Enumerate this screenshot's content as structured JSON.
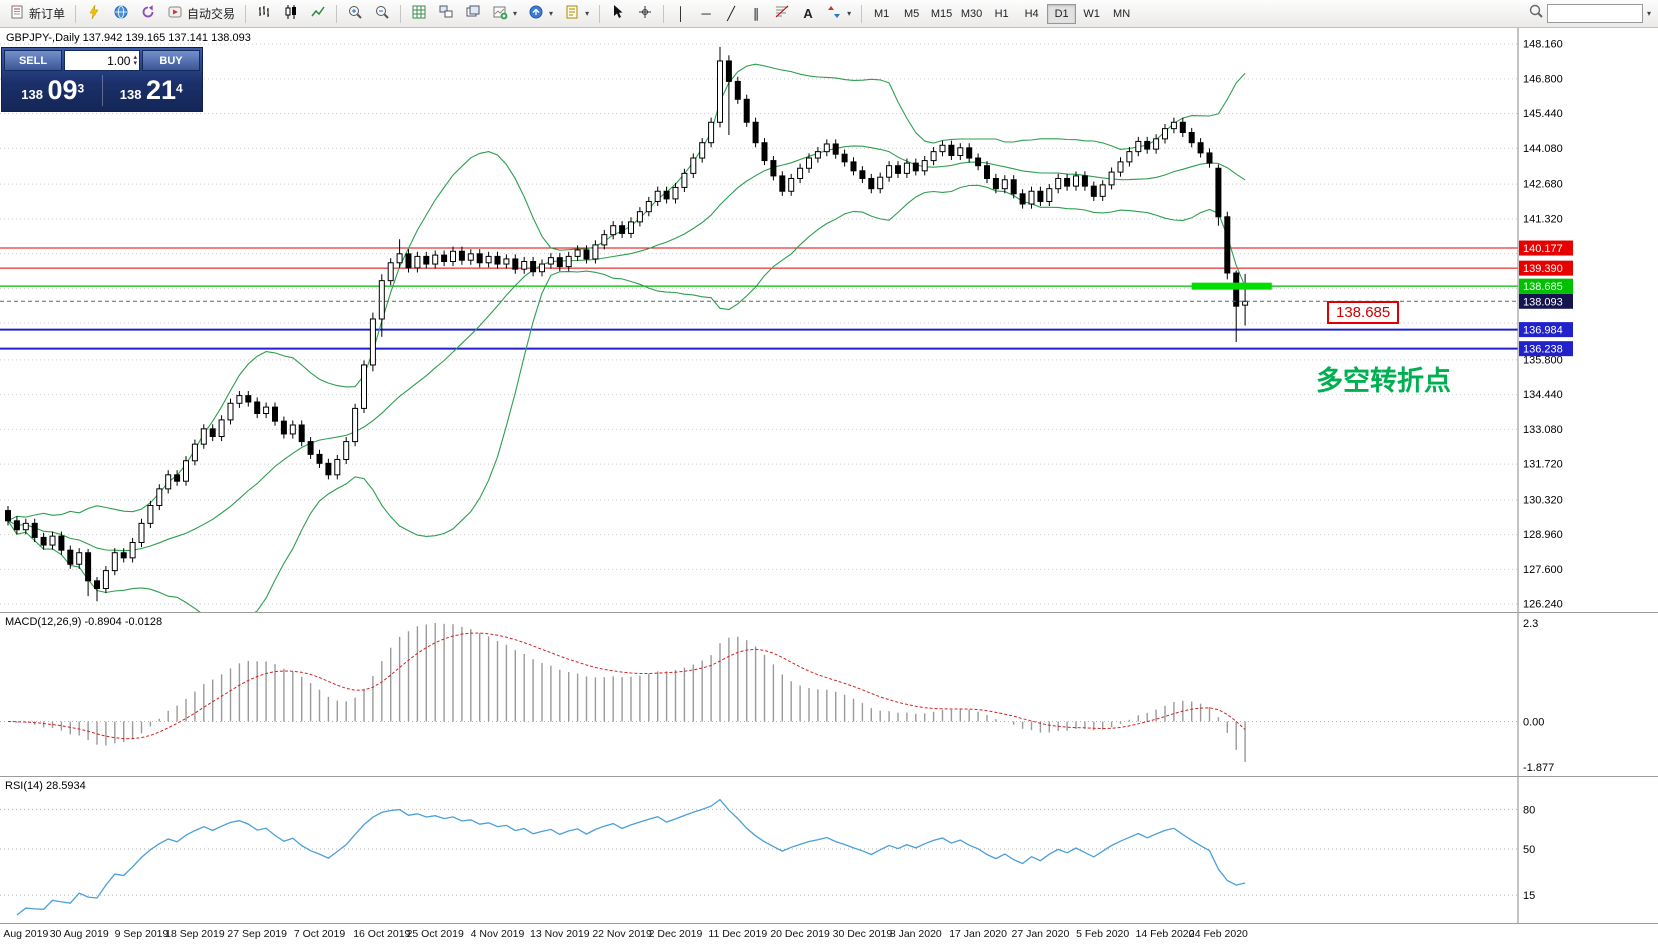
{
  "toolbar": {
    "new_order_label": "新订单",
    "autotrade_label": "自动交易",
    "timeframes": [
      "M1",
      "M5",
      "M15",
      "M30",
      "H1",
      "H4",
      "D1",
      "W1",
      "MN"
    ],
    "active_timeframe": "D1",
    "glyphs": {
      "vertical_line": "│",
      "horizontal_line": "─",
      "trendline": "╱",
      "channel": "∥",
      "text_tool": "A",
      "caret": "▾",
      "stepper_up": "▴",
      "stepper_down": "▾"
    }
  },
  "quote_panel": {
    "sell_label": "SELL",
    "buy_label": "BUY",
    "volume": "1.00",
    "sell_price": {
      "prefix": "138",
      "big": "09",
      "sup": "3"
    },
    "buy_price": {
      "prefix": "138",
      "big": "21",
      "sup": "4"
    }
  },
  "chart": {
    "title": "GBPJPY-,Daily 137.942 139.165 137.141 138.093"
  },
  "chart_data": {
    "type": "candlestick",
    "symbol": "GBPJPY-",
    "timeframe": "Daily",
    "ohlc": {
      "open": 137.942,
      "high": 139.165,
      "low": 137.141,
      "close": 138.093
    },
    "bands_color": "#2e9e4f",
    "price_axis": {
      "min": 125.93,
      "max": 148.79,
      "gridlines": [
        148.16,
        146.8,
        145.44,
        144.08,
        142.68,
        141.32,
        135.8,
        134.44,
        133.08,
        131.72,
        130.32,
        128.96,
        127.6,
        126.24
      ],
      "hidden_gridlines": [
        139.96,
        138.6,
        137.24
      ],
      "special_labels": [
        {
          "price": 140.177,
          "text": "140.177",
          "bg": "#e60000",
          "fg": "#ffffff"
        },
        {
          "price": 139.39,
          "text": "139.390",
          "bg": "#e60000",
          "fg": "#ffffff"
        },
        {
          "price": 138.685,
          "text": "138.685",
          "bg": "#00c000",
          "fg": "#ffffff"
        },
        {
          "price": 138.093,
          "text": "138.093",
          "bg": "#14144e",
          "fg": "#ffffff"
        },
        {
          "price": 136.984,
          "text": "136.984",
          "bg": "#2222cc",
          "fg": "#ffffff"
        },
        {
          "price": 136.238,
          "text": "136.238",
          "bg": "#2222cc",
          "fg": "#ffffff"
        }
      ]
    },
    "hlines": [
      {
        "price": 140.177,
        "color": "#e00000",
        "width": 1
      },
      {
        "price": 139.39,
        "color": "#e00000",
        "width": 1
      },
      {
        "price": 138.685,
        "color": "#00b800",
        "width": 1.2
      },
      {
        "price": 136.984,
        "color": "#2020cc",
        "width": 2
      },
      {
        "price": 136.238,
        "color": "#2020cc",
        "width": 2
      }
    ],
    "current_price": {
      "value": 138.093,
      "label": "138.093"
    },
    "highlight_segment": {
      "price": 138.685,
      "start_index": 133,
      "end_index": 142,
      "color": "#00dd00"
    },
    "annotations": {
      "price_flag": "138.685",
      "note": "多空转折点"
    },
    "candles": {
      "first_open": 129.9,
      "closes": [
        129.5,
        129.15,
        129.4,
        128.85,
        128.55,
        128.9,
        128.35,
        127.8,
        128.25,
        127.15,
        126.85,
        127.55,
        128.25,
        128.05,
        128.65,
        129.4,
        130.1,
        130.75,
        131.3,
        131.05,
        131.85,
        132.5,
        133.1,
        132.8,
        133.45,
        134.1,
        134.4,
        134.15,
        133.7,
        133.95,
        133.4,
        132.9,
        133.25,
        132.6,
        132.1,
        131.75,
        131.3,
        131.9,
        132.6,
        133.9,
        135.6,
        137.4,
        138.9,
        139.6,
        139.95,
        139.4,
        139.85,
        139.55,
        139.9,
        139.65,
        140.05,
        139.7,
        139.95,
        139.6,
        139.85,
        139.55,
        139.75,
        139.35,
        139.65,
        139.25,
        139.55,
        139.8,
        139.45,
        139.85,
        140.1,
        139.75,
        140.3,
        140.7,
        141.05,
        140.75,
        141.2,
        141.6,
        142.0,
        142.4,
        142.1,
        142.55,
        143.1,
        143.7,
        144.3,
        145.1,
        147.5,
        146.7,
        146.0,
        145.1,
        144.3,
        143.6,
        143.0,
        142.4,
        142.9,
        143.3,
        143.7,
        143.95,
        144.25,
        143.85,
        143.55,
        143.2,
        142.9,
        142.5,
        142.95,
        143.4,
        143.1,
        143.5,
        143.2,
        143.6,
        143.95,
        144.2,
        143.8,
        144.1,
        143.7,
        143.4,
        142.9,
        142.5,
        142.85,
        142.3,
        141.9,
        142.4,
        142.0,
        142.5,
        142.9,
        142.6,
        143.0,
        142.6,
        142.2,
        142.65,
        143.15,
        143.55,
        143.95,
        144.35,
        144.05,
        144.45,
        144.85,
        145.1,
        144.7,
        144.3,
        143.9,
        143.5,
        141.4,
        139.2,
        137.9,
        138.093
      ],
      "overrides": {
        "9": [
          128.25,
          128.4,
          126.55,
          127.15
        ],
        "10": [
          127.15,
          127.3,
          126.35,
          126.85
        ],
        "41": [
          135.6,
          137.65,
          135.35,
          137.4
        ],
        "42": [
          137.4,
          139.15,
          136.7,
          138.9
        ],
        "44": [
          139.6,
          140.52,
          139.4,
          139.95
        ],
        "80": [
          145.1,
          148.05,
          144.9,
          147.5
        ],
        "81": [
          147.5,
          147.72,
          144.6,
          146.7
        ],
        "136": [
          143.3,
          143.45,
          141.05,
          141.4
        ],
        "137": [
          141.4,
          141.6,
          138.95,
          139.2
        ],
        "138": [
          139.2,
          139.3,
          136.5,
          137.9
        ],
        "139": [
          137.942,
          139.165,
          137.141,
          138.093
        ]
      }
    },
    "macd": {
      "label": "MACD(12,26,9) -0.8904 -0.0128",
      "params": [
        12,
        26,
        9
      ],
      "values_display": [
        -0.8904,
        -0.0128
      ],
      "axis_max": "2.3",
      "axis_zero": "0.00",
      "axis_min": "-1.877"
    },
    "rsi": {
      "label": "RSI(14) 28.5934",
      "period": 14,
      "value": 28.5934,
      "levels": [
        80,
        50,
        15
      ]
    },
    "x_axis_labels": [
      {
        "i": 2,
        "t": "Aug 2019"
      },
      {
        "i": 8,
        "t": "30 Aug 2019"
      },
      {
        "i": 15,
        "t": "9 Sep 2019"
      },
      {
        "i": 21,
        "t": "18 Sep 2019"
      },
      {
        "i": 28,
        "t": "27 Sep 2019"
      },
      {
        "i": 35,
        "t": "7 Oct 2019"
      },
      {
        "i": 42,
        "t": "16 Oct 2019"
      },
      {
        "i": 48,
        "t": "25 Oct 2019"
      },
      {
        "i": 55,
        "t": "4 Nov 2019"
      },
      {
        "i": 62,
        "t": "13 Nov 2019"
      },
      {
        "i": 69,
        "t": "22 Nov 2019"
      },
      {
        "i": 75,
        "t": "2 Dec 2019"
      },
      {
        "i": 82,
        "t": "11 Dec 2019"
      },
      {
        "i": 89,
        "t": "20 Dec 2019"
      },
      {
        "i": 96,
        "t": "30 Dec 2019"
      },
      {
        "i": 102,
        "t": "8 Jan 2020"
      },
      {
        "i": 109,
        "t": "17 Jan 2020"
      },
      {
        "i": 116,
        "t": "27 Jan 2020"
      },
      {
        "i": 123,
        "t": "5 Feb 2020"
      },
      {
        "i": 130,
        "t": "14 Feb 2020"
      },
      {
        "i": 136,
        "t": "24 Feb 2020"
      }
    ]
  }
}
